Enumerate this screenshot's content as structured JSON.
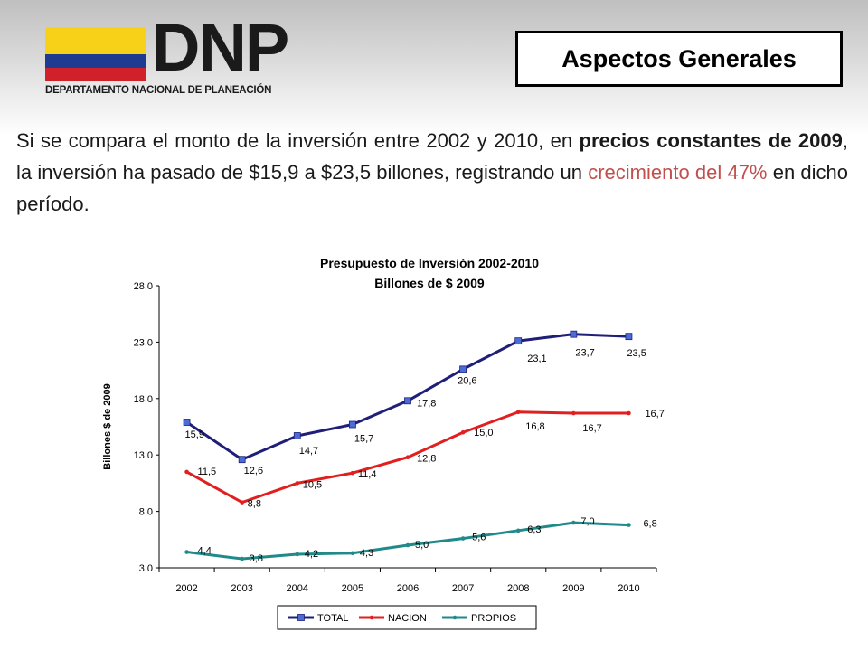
{
  "header": {
    "logo_text": "DNP",
    "logo_subtitle": "DEPARTAMENTO NACIONAL DE PLANEACIÓN",
    "flag_colors": [
      "#f7d117",
      "#1f3b8f",
      "#d0202a"
    ],
    "section_title": "Aspectos Generales"
  },
  "body_text": {
    "p1": "Si se compara el monto de la inversión entre 2002 y 2010, en ",
    "p1_bold": "precios constantes de 2009",
    "p2": ", la inversión ha pasado de $15,9 a $23,5 billones, registrando un ",
    "p2_red": "crecimiento del 47%",
    "p3": " en dicho período."
  },
  "colors": {
    "accent_red": "#c0504d"
  },
  "chart_data": {
    "type": "line",
    "title": "Presupuesto de Inversión 2002-2010",
    "subtitle": "Billones de $ 2009",
    "ylabel": "Billones $ de 2009",
    "xlabel": "",
    "ylim": [
      3.0,
      28.0
    ],
    "yticks": [
      "3,0",
      "8,0",
      "13,0",
      "18,0",
      "23,0",
      "28,0"
    ],
    "ytick_values": [
      3,
      8,
      13,
      18,
      23,
      28
    ],
    "categories": [
      "2002",
      "2003",
      "2004",
      "2005",
      "2006",
      "2007",
      "2008",
      "2009",
      "2010"
    ],
    "legend_position": "bottom",
    "series": [
      {
        "name": "TOTAL",
        "color": "#1f1f7a",
        "marker": "square",
        "values": [
          15.9,
          12.6,
          14.7,
          15.7,
          17.8,
          20.6,
          23.1,
          23.7,
          23.5
        ],
        "labels": [
          "15,9",
          "12,6",
          "14,7",
          "15,7",
          "17,8",
          "20,6",
          "23,1",
          "23,7",
          "23,5"
        ]
      },
      {
        "name": "NACION",
        "color": "#e21f1f",
        "marker": "circle",
        "values": [
          11.5,
          8.8,
          10.5,
          11.4,
          12.8,
          15.0,
          16.8,
          16.7,
          16.7
        ],
        "labels": [
          "11,5",
          "8,8",
          "10,5",
          "11,4",
          "12,8",
          "15,0",
          "16,8",
          "16,7",
          "16,7"
        ]
      },
      {
        "name": "PROPIOS",
        "color": "#208a8a",
        "marker": "circle",
        "values": [
          4.4,
          3.8,
          4.2,
          4.3,
          5.0,
          5.6,
          6.3,
          7.0,
          6.8
        ],
        "labels": [
          "4,4",
          "3,8",
          "4,2",
          "4,3",
          "5,0",
          "5,6",
          "6,3",
          "7,0",
          "6,8"
        ]
      }
    ]
  }
}
